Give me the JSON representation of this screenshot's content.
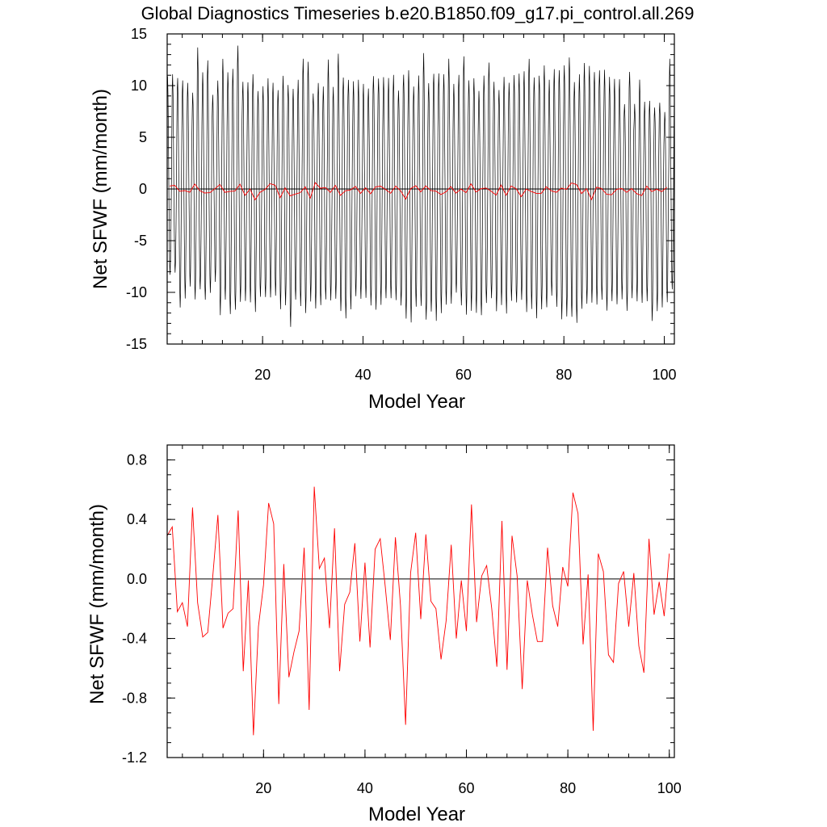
{
  "title": "Global Diagnostics Timeseries b.e20.B1850.f09_g17.pi_control.all.269",
  "annual_colors": {
    "monthly": "#000000",
    "annual": "#ff0000"
  },
  "chart_data": [
    {
      "type": "line",
      "ylabel": "Net SFWF (mm/month)",
      "xlabel": "Model Year",
      "xlim": [
        1,
        102
      ],
      "ylim": [
        -15,
        15
      ],
      "xticks": [
        20,
        40,
        60,
        80,
        100
      ],
      "xtick_labels": [
        "20",
        "40",
        "60",
        "80",
        "100"
      ],
      "yticks": [
        -15,
        -10,
        -5,
        0,
        5,
        10,
        15
      ],
      "ytick_labels": [
        "-15",
        "-10",
        "-5",
        "0",
        "5",
        "10",
        "15"
      ],
      "reference_line": 0,
      "series": [
        {
          "id": "monthly",
          "color": "#000000",
          "note": "monthly values, approximate peak/trough per year",
          "yearly_max": [
            10.6,
            10.8,
            10.7,
            10.8,
            10.6,
            9.4,
            13.4,
            10.9,
            12.3,
            9.3,
            10.9,
            12.8,
            11.1,
            11.2,
            13.6,
            10.5,
            10.7,
            11.4,
            9.4,
            9.6,
            10.4,
            10.3,
            9.9,
            11.3,
            10.1,
            9.4,
            10.2,
            12.5,
            12.6,
            9.6,
            10.4,
            9.7,
            12.1,
            9.7,
            13.3,
            11.2,
            10.8,
            10.3,
            10.2,
            9.9,
            9.8,
            11.3,
            11.0,
            10.8,
            10.4,
            10.7,
            9.5,
            11.4,
            11.9,
            10.0,
            10.7,
            12.7,
            10.1,
            11.4,
            11.6,
            11.3,
            12.4,
            9.8,
            10.8,
            13.0,
            10.9,
            11.0,
            9.4,
            10.6,
            11.9,
            10.4,
            9.9,
            11.2,
            10.3,
            10.7,
            10.8,
            11.3,
            12.9,
            11.2,
            11.1,
            11.7,
            10.2,
            11.4,
            11.7,
            12.4,
            13.0,
            10.2,
            10.7,
            11.9,
            12.0,
            11.7,
            11.8,
            11.5,
            10.5,
            10.3,
            10.6,
            8.5,
            11.7,
            8.3,
            10.3,
            8.1,
            8.4,
            8.1,
            8.7,
            7.6,
            12.4,
            11.0
          ],
          "yearly_min": [
            -8.6,
            -8.4,
            -11.5,
            -10.3,
            -9.1,
            -10.6,
            -10.0,
            -11.1,
            -10.2,
            -8.8,
            -11.8,
            -10.5,
            -12.3,
            -12.1,
            -11.2,
            -10.7,
            -10.6,
            -11.6,
            -10.5,
            -10.8,
            -10.8,
            -10.3,
            -11.3,
            -10.9,
            -13.3,
            -11.0,
            -11.7,
            -12.1,
            -10.6,
            -11.2,
            -11.1,
            -10.9,
            -11.2,
            -10.8,
            -11.6,
            -12.1,
            -11.4,
            -10.5,
            -11.0,
            -10.8,
            -11.2,
            -11.3,
            -10.9,
            -10.6,
            -10.9,
            -11.1,
            -11.3,
            -12.2,
            -12.5,
            -11.3,
            -11.6,
            -13.1,
            -12.0,
            -12.5,
            -11.6,
            -11.0,
            -11.3,
            -10.4,
            -11.5,
            -12.0,
            -11.4,
            -11.7,
            -12.3,
            -11.4,
            -10.9,
            -11.8,
            -10.9,
            -11.7,
            -10.8,
            -11.3,
            -11.1,
            -12.0,
            -11.3,
            -12.1,
            -11.5,
            -11.7,
            -10.7,
            -11.6,
            -12.4,
            -11.9,
            -12.1,
            -13.1,
            -12.0,
            -11.4,
            -10.9,
            -10.8,
            -10.4,
            -11.8,
            -11.2,
            -11.5,
            -10.7,
            -11.5,
            -10.2,
            -10.8,
            -11.3,
            -11.2,
            -12.9,
            -11.6,
            -11.1,
            -10.8,
            -9.9,
            -10.7
          ]
        },
        {
          "id": "annual",
          "color": "#ff0000",
          "note": "annual mean, same as lower panel"
        }
      ]
    },
    {
      "type": "line",
      "ylabel": "Net SFWF (mm/month)",
      "xlabel": "Model Year",
      "xlim": [
        1,
        101
      ],
      "ylim": [
        -1.2,
        0.9
      ],
      "xticks": [
        20,
        40,
        60,
        80,
        100
      ],
      "xtick_labels": [
        "20",
        "40",
        "60",
        "80",
        "100"
      ],
      "yticks": [
        -1.2,
        -0.8,
        -0.4,
        0.0,
        0.4,
        0.8
      ],
      "ytick_labels": [
        "-1.2",
        "-0.8",
        "-0.4",
        "0.0",
        "0.4",
        "0.8"
      ],
      "reference_line": 0,
      "series": [
        {
          "id": "annual",
          "color": "#ff0000",
          "x_start": 1,
          "values": [
            0.29,
            0.35,
            -0.22,
            -0.16,
            -0.32,
            0.48,
            -0.16,
            -0.39,
            -0.36,
            0.02,
            0.43,
            -0.33,
            -0.23,
            -0.2,
            0.46,
            -0.62,
            -0.01,
            -1.05,
            -0.32,
            -0.04,
            0.51,
            0.37,
            -0.84,
            0.1,
            -0.66,
            -0.49,
            -0.35,
            0.21,
            -0.88,
            0.62,
            0.07,
            0.14,
            -0.33,
            0.34,
            -0.62,
            -0.17,
            -0.09,
            0.24,
            -0.42,
            0.11,
            -0.46,
            0.2,
            0.27,
            -0.05,
            -0.41,
            0.28,
            -0.18,
            -0.98,
            0.04,
            0.31,
            -0.27,
            0.3,
            -0.15,
            -0.2,
            -0.54,
            -0.28,
            0.23,
            -0.4,
            -0.01,
            -0.35,
            0.5,
            -0.29,
            0.02,
            0.09,
            -0.2,
            -0.59,
            0.39,
            -0.61,
            0.29,
            0.02,
            -0.74,
            -0.01,
            -0.24,
            -0.42,
            -0.42,
            0.21,
            -0.18,
            -0.32,
            0.08,
            -0.05,
            0.58,
            0.44,
            -0.44,
            0.03,
            -1.02,
            0.17,
            0.05,
            -0.51,
            -0.56,
            -0.03,
            0.05,
            -0.32,
            0.04,
            -0.45,
            -0.63,
            0.27,
            -0.24,
            -0.02,
            -0.25,
            0.17
          ]
        }
      ]
    }
  ]
}
